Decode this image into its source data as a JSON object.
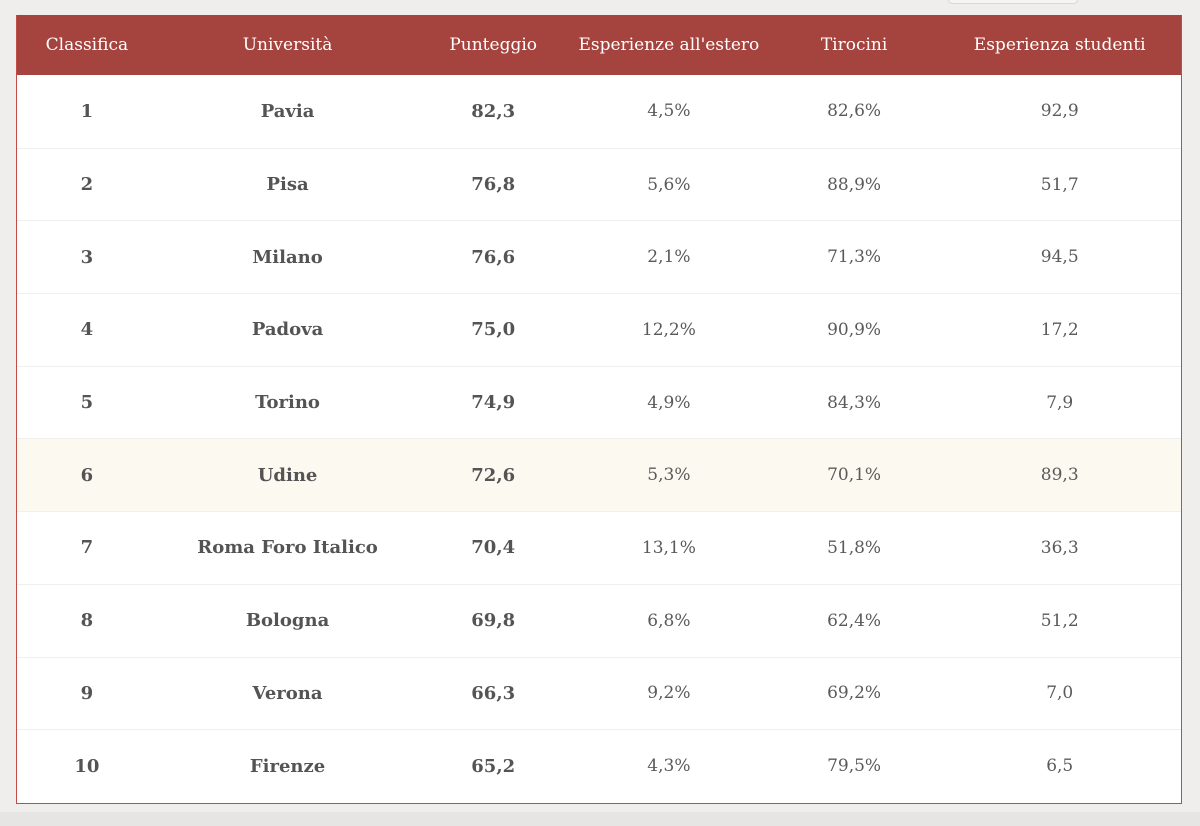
{
  "table": {
    "headers": [
      "Classifica",
      "Università",
      "Punteggio",
      "Esperienze all'estero",
      "Tirocini",
      "Esperienza studenti"
    ],
    "rows": [
      {
        "rank": "1",
        "university": "Pavia",
        "score": "82,3",
        "abroad": "4,5%",
        "internships": "82,6%",
        "student_exp": "92,9"
      },
      {
        "rank": "2",
        "university": "Pisa",
        "score": "76,8",
        "abroad": "5,6%",
        "internships": "88,9%",
        "student_exp": "51,7"
      },
      {
        "rank": "3",
        "university": "Milano",
        "score": "76,6",
        "abroad": "2,1%",
        "internships": "71,3%",
        "student_exp": "94,5"
      },
      {
        "rank": "4",
        "university": "Padova",
        "score": "75,0",
        "abroad": "12,2%",
        "internships": "90,9%",
        "student_exp": "17,2"
      },
      {
        "rank": "5",
        "university": "Torino",
        "score": "74,9",
        "abroad": "4,9%",
        "internships": "84,3%",
        "student_exp": "7,9"
      },
      {
        "rank": "6",
        "university": "Udine",
        "score": "72,6",
        "abroad": "5,3%",
        "internships": "70,1%",
        "student_exp": "89,3"
      },
      {
        "rank": "7",
        "university": "Roma Foro Italico",
        "score": "70,4",
        "abroad": "13,1%",
        "internships": "51,8%",
        "student_exp": "36,3"
      },
      {
        "rank": "8",
        "university": "Bologna",
        "score": "69,8",
        "abroad": "6,8%",
        "internships": "62,4%",
        "student_exp": "51,2"
      },
      {
        "rank": "9",
        "university": "Verona",
        "score": "66,3",
        "abroad": "9,2%",
        "internships": "69,2%",
        "student_exp": "7,0"
      },
      {
        "rank": "10",
        "university": "Firenze",
        "score": "65,2",
        "abroad": "4,3%",
        "internships": "79,5%",
        "student_exp": "6,5"
      }
    ],
    "highlighted_row": 5
  },
  "colors": {
    "header_bg": "#a5443e",
    "border": "#c14c45",
    "highlight_row": "#fcf9f1"
  }
}
